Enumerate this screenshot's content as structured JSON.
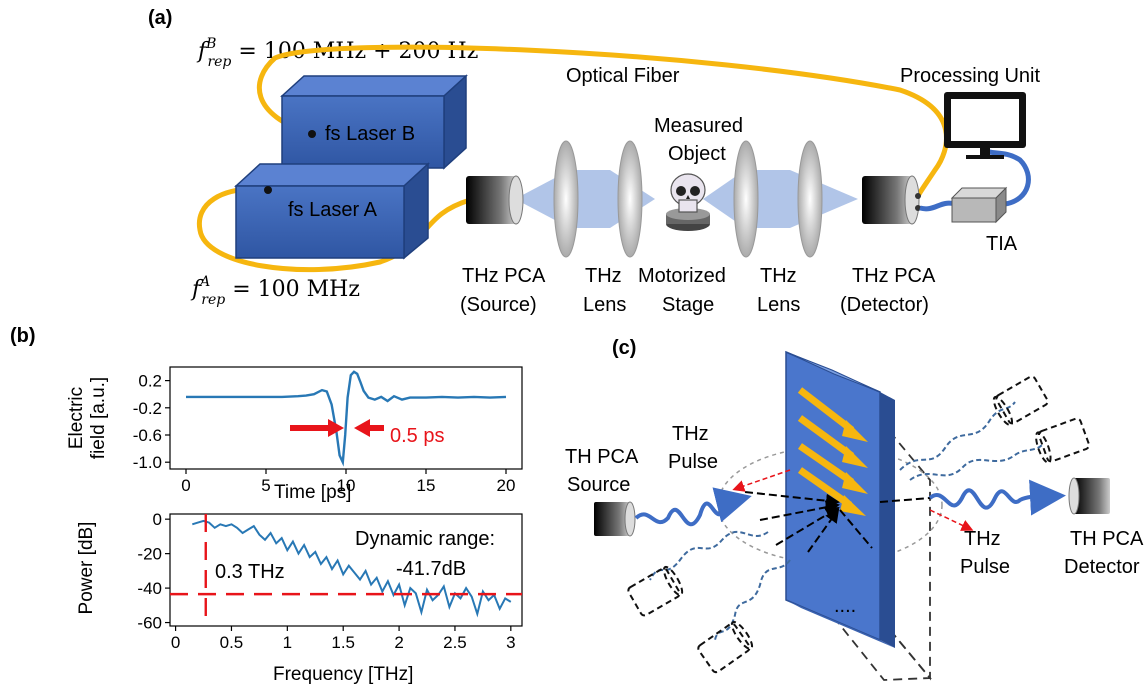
{
  "panel_a": {
    "label": "(a)",
    "freq_b": "f",
    "freq_b_sup": "B",
    "freq_b_sub": "rep",
    "freq_b_value": " = 100 MHz + 200 Hz",
    "freq_a": "f",
    "freq_a_sup": "A",
    "freq_a_sub": "rep",
    "freq_a_value": " = 100 MHz",
    "optical_fiber": "Optical Fiber",
    "processing_unit": "Processing Unit",
    "laser_b": "fs Laser B",
    "laser_a": "fs Laser A",
    "measured_object_1": "Measured",
    "measured_object_2": "Object",
    "tia": "TIA",
    "source_1": "THz PCA",
    "source_2": "(Source)",
    "lens1_1": "THz",
    "lens1_2": "Lens",
    "stage_1": "Motorized",
    "stage_2": "Stage",
    "lens2_1": "THz",
    "lens2_2": "Lens",
    "detector_1": "THz PCA",
    "detector_2": "(Detector)"
  },
  "panel_b": {
    "label": "(b)",
    "pulse_annotation": "0.5 ps",
    "freq_annotation": "0.3 THz",
    "dynamic_range_label": "Dynamic range:",
    "dynamic_range_value": "-41.7dB",
    "colors": {
      "trace": "#2878b5",
      "marker": "#e8141a"
    }
  },
  "panel_c": {
    "label": "(c)",
    "source_1": "TH PCA",
    "source_2": "Source",
    "pulse_in_1": "THz",
    "pulse_in_2": "Pulse",
    "pulse_out_1": "THz",
    "pulse_out_2": "Pulse",
    "detector_1": "TH PCA",
    "detector_2": "Detector",
    "ellipsis": "...."
  },
  "chart_data": [
    {
      "type": "line",
      "xlabel": "Time [ps]",
      "ylabel_1": "Electric",
      "ylabel_2": "field [a.u.]",
      "xlim": [
        -1,
        21
      ],
      "ylim": [
        -1.1,
        0.4
      ],
      "xticks": [
        0,
        5,
        10,
        15,
        20
      ],
      "yticks": [
        0.2,
        -0.2,
        -0.6,
        -1.0
      ],
      "ytick_labels": [
        "0.2",
        "-0.2",
        "-0.6",
        "-1.0"
      ],
      "series": [
        {
          "x": [
            0,
            1,
            2,
            3,
            4,
            5,
            6,
            7,
            7.5,
            8,
            8.5,
            8.8,
            9.1,
            9.4,
            9.6,
            9.8,
            9.95,
            10.1,
            10.3,
            10.5,
            10.7,
            10.9,
            11.1,
            11.4,
            11.8,
            12.2,
            12.6,
            13,
            13.5,
            14,
            15,
            16,
            17,
            18,
            19,
            20
          ],
          "y": [
            -0.04,
            -0.04,
            -0.04,
            -0.04,
            -0.04,
            -0.04,
            -0.04,
            -0.03,
            -0.02,
            0.0,
            0.06,
            0.04,
            -0.15,
            -0.55,
            -0.9,
            -1.0,
            -0.6,
            -0.05,
            0.28,
            0.33,
            0.3,
            0.18,
            0.05,
            -0.05,
            -0.08,
            -0.04,
            -0.1,
            -0.03,
            -0.08,
            -0.05,
            -0.05,
            -0.04,
            -0.05,
            -0.04,
            -0.05,
            -0.04
          ]
        }
      ]
    },
    {
      "type": "line",
      "xlabel": "Frequency [THz]",
      "ylabel": "Power [dB]",
      "xlim": [
        -0.05,
        3.1
      ],
      "ylim": [
        -62,
        3
      ],
      "xticks": [
        0,
        0.5,
        1,
        1.5,
        2,
        2.5,
        3
      ],
      "xtick_labels": [
        "0",
        "0.5",
        "1",
        "1.5",
        "2",
        "2.5",
        "3"
      ],
      "yticks": [
        0,
        -20,
        -40,
        -60
      ],
      "ytick_labels": [
        "0",
        "-20",
        "-40",
        "-60"
      ],
      "hline": -43.5,
      "vline": 0.27,
      "series": [
        {
          "x": [
            0.15,
            0.2,
            0.25,
            0.3,
            0.35,
            0.4,
            0.45,
            0.5,
            0.55,
            0.6,
            0.65,
            0.7,
            0.75,
            0.8,
            0.85,
            0.9,
            0.95,
            1.0,
            1.05,
            1.1,
            1.15,
            1.2,
            1.25,
            1.3,
            1.35,
            1.4,
            1.45,
            1.5,
            1.55,
            1.6,
            1.65,
            1.7,
            1.75,
            1.8,
            1.85,
            1.9,
            1.95,
            2.0,
            2.05,
            2.1,
            2.15,
            2.2,
            2.25,
            2.3,
            2.35,
            2.4,
            2.45,
            2.5,
            2.55,
            2.6,
            2.65,
            2.7,
            2.75,
            2.8,
            2.85,
            2.9,
            2.95,
            3.0
          ],
          "y": [
            -3,
            -2,
            -1,
            -2,
            -5,
            -3,
            -4,
            -3,
            -5,
            -8,
            -6,
            -4,
            -9,
            -12,
            -8,
            -14,
            -11,
            -18,
            -13,
            -20,
            -15,
            -22,
            -19,
            -26,
            -22,
            -29,
            -24,
            -32,
            -27,
            -31,
            -35,
            -30,
            -38,
            -34,
            -42,
            -36,
            -44,
            -38,
            -50,
            -40,
            -43,
            -54,
            -41,
            -47,
            -44,
            -39,
            -51,
            -43,
            -46,
            -40,
            -45,
            -55,
            -42,
            -47,
            -44,
            -52,
            -46,
            -48
          ]
        }
      ]
    }
  ]
}
